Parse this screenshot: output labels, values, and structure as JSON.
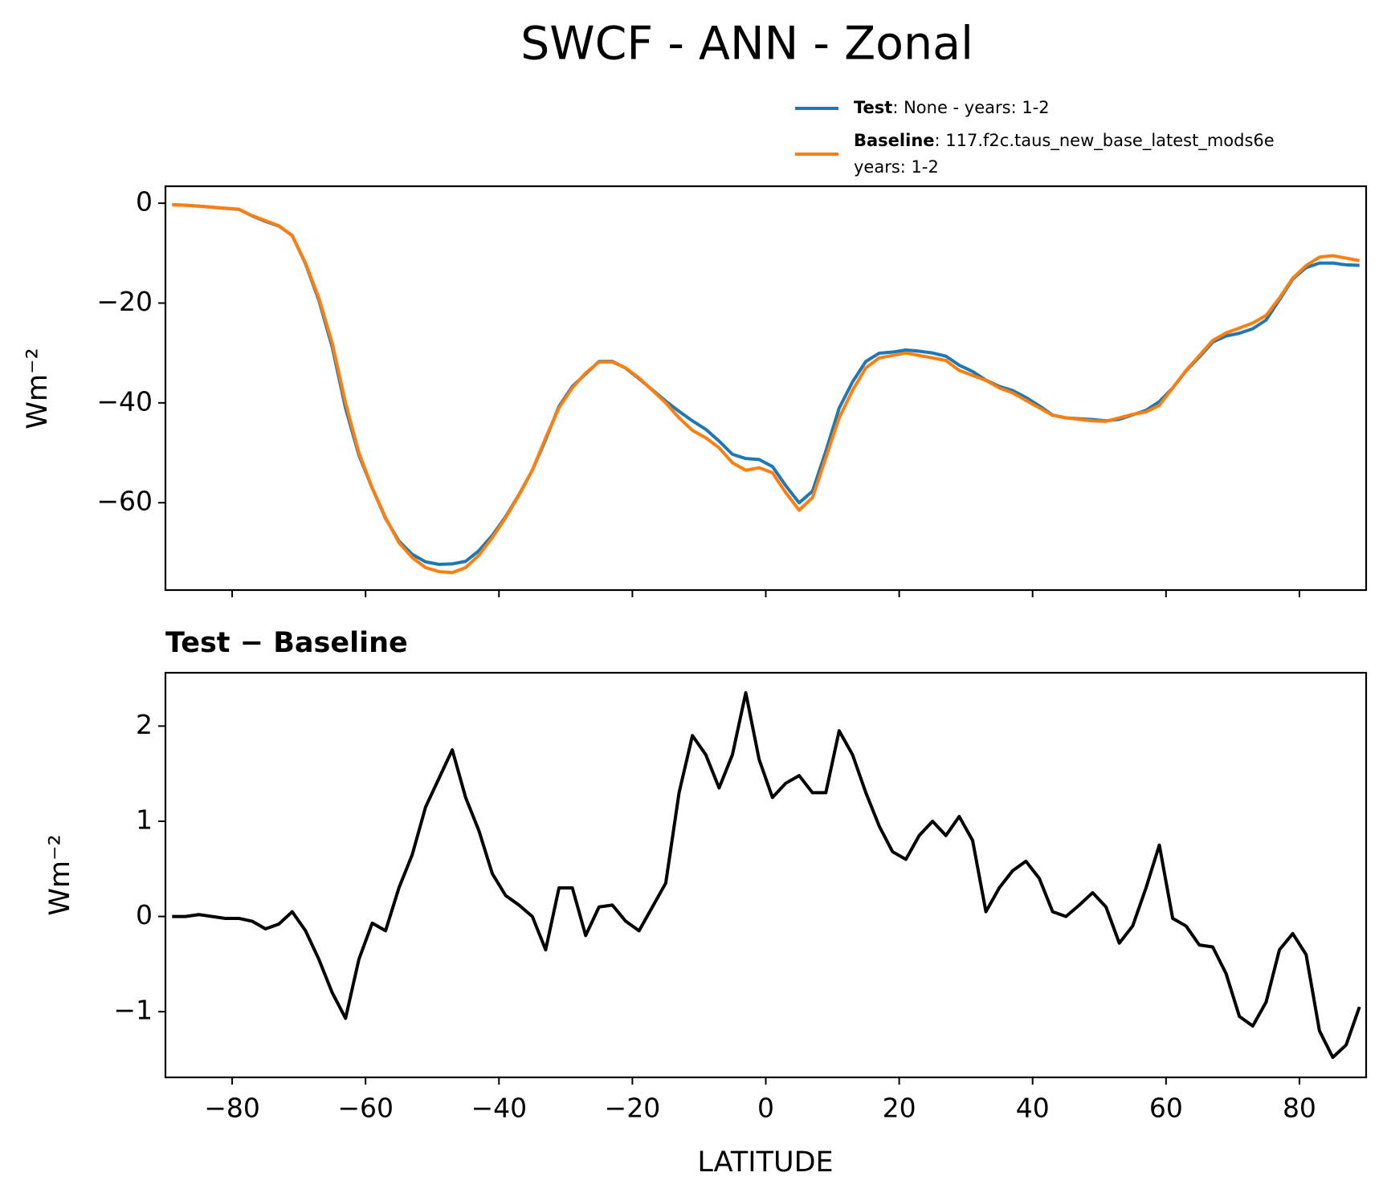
{
  "chart_data": [
    {
      "type": "line",
      "title": "SWCF - ANN - Zonal",
      "ylabel": "Wm⁻²",
      "x": [
        -89,
        -87,
        -85,
        -83,
        -81,
        -79,
        -77,
        -75,
        -73,
        -71,
        -69,
        -67,
        -65,
        -63,
        -61,
        -59,
        -57,
        -55,
        -53,
        -51,
        -49,
        -47,
        -45,
        -43,
        -41,
        -39,
        -37,
        -35,
        -33,
        -31,
        -29,
        -27,
        -25,
        -23,
        -21,
        -19,
        -17,
        -15,
        -13,
        -11,
        -9,
        -7,
        -5,
        -3,
        -1,
        1,
        3,
        5,
        7,
        9,
        11,
        13,
        15,
        17,
        19,
        21,
        23,
        25,
        27,
        29,
        31,
        33,
        35,
        37,
        39,
        41,
        43,
        45,
        47,
        49,
        51,
        53,
        55,
        57,
        59,
        61,
        63,
        65,
        67,
        69,
        71,
        73,
        75,
        77,
        79,
        81,
        83,
        85,
        87,
        89
      ],
      "series": [
        {
          "name": "Test",
          "description": [
            ": None - years: 1-2"
          ],
          "color": "#1f77b4",
          "values": [
            -0.3,
            -0.4,
            -0.58,
            -0.8,
            -1.02,
            -1.22,
            -2.55,
            -3.63,
            -4.58,
            -6.45,
            -12.15,
            -19.45,
            -28.8,
            -41.07,
            -50.45,
            -57.07,
            -63.15,
            -67.7,
            -70.35,
            -71.85,
            -72.35,
            -72.25,
            -71.75,
            -69.6,
            -66.55,
            -62.78,
            -58.38,
            -53.5,
            -47.35,
            -40.7,
            -36.7,
            -34.2,
            -31.7,
            -31.68,
            -33.05,
            -35.15,
            -37.4,
            -39.65,
            -41.7,
            -43.6,
            -45.3,
            -47.65,
            -50.3,
            -51.15,
            -51.35,
            -52.75,
            -56.6,
            -60.02,
            -57.7,
            -49.7,
            -41.05,
            -35.8,
            -31.7,
            -30.05,
            -29.82,
            -29.4,
            -29.65,
            -30,
            -30.65,
            -32.45,
            -33.7,
            -35.45,
            -36.7,
            -37.52,
            -38.92,
            -40.6,
            -42.45,
            -43,
            -43.18,
            -43.35,
            -43.6,
            -43.28,
            -42.4,
            -41.5,
            -39.75,
            -37.02,
            -33.6,
            -30.8,
            -27.82,
            -26.6,
            -26.05,
            -25.15,
            -23.4,
            -19.35,
            -15.18,
            -12.9,
            -12,
            -11.98,
            -12.35,
            -12.45
          ]
        },
        {
          "name": "Baseline",
          "description": [
            ": 117.f2c.taus_new_base_latest_mods6e",
            "years: 1-2"
          ],
          "color": "#ff7f0e",
          "values": [
            -0.3,
            -0.4,
            -0.6,
            -0.8,
            -1.0,
            -1.2,
            -2.5,
            -3.5,
            -4.5,
            -6.5,
            -12,
            -19,
            -28,
            -40,
            -50,
            -57,
            -63,
            -68,
            -71,
            -73,
            -73.8,
            -74,
            -73,
            -70.5,
            -67,
            -63,
            -58.5,
            -53.5,
            -47,
            -41,
            -37,
            -34,
            -31.8,
            -31.8,
            -33,
            -35,
            -37.5,
            -40,
            -43,
            -45.5,
            -47,
            -49,
            -52,
            -53.5,
            -53,
            -54,
            -58,
            -61.5,
            -59,
            -51,
            -43,
            -37.5,
            -33,
            -31,
            -30.5,
            -30,
            -30.5,
            -31,
            -31.5,
            -33.5,
            -34.5,
            -35.5,
            -37,
            -38,
            -39.5,
            -41,
            -42.5,
            -43,
            -43.3,
            -43.6,
            -43.7,
            -43,
            -42.3,
            -41.8,
            -40.5,
            -37,
            -33.5,
            -30.5,
            -27.5,
            -26,
            -25,
            -24,
            -22.5,
            -19,
            -15,
            -12.5,
            -10.8,
            -10.5,
            -11,
            -11.5
          ]
        }
      ],
      "xlim": [
        -90,
        90
      ],
      "xticks": [
        -80,
        -60,
        -40,
        -20,
        0,
        20,
        40,
        60,
        80
      ],
      "ylim": [
        -77.5,
        3.4
      ],
      "yticks": [
        {
          "value": 0,
          "label": "0"
        },
        {
          "value": -20,
          "label": "−20"
        },
        {
          "value": -40,
          "label": "−40"
        },
        {
          "value": -60,
          "label": "−60"
        }
      ],
      "legend": "top-right-outside"
    },
    {
      "type": "line",
      "title": "Test − Baseline",
      "ylabel": "Wm⁻²",
      "xlabel": "LATITUDE",
      "x": [
        -89,
        -87,
        -85,
        -83,
        -81,
        -79,
        -77,
        -75,
        -73,
        -71,
        -69,
        -67,
        -65,
        -63,
        -61,
        -59,
        -57,
        -55,
        -53,
        -51,
        -49,
        -47,
        -45,
        -43,
        -41,
        -39,
        -37,
        -35,
        -33,
        -31,
        -29,
        -27,
        -25,
        -23,
        -21,
        -19,
        -17,
        -15,
        -13,
        -11,
        -9,
        -7,
        -5,
        -3,
        -1,
        1,
        3,
        5,
        7,
        9,
        11,
        13,
        15,
        17,
        19,
        21,
        23,
        25,
        27,
        29,
        31,
        33,
        35,
        37,
        39,
        41,
        43,
        45,
        47,
        49,
        51,
        53,
        55,
        57,
        59,
        61,
        63,
        65,
        67,
        69,
        71,
        73,
        75,
        77,
        79,
        81,
        83,
        85,
        87,
        89
      ],
      "color": "#000000",
      "values": [
        0.0,
        0.0,
        0.02,
        0.0,
        -0.02,
        -0.02,
        -0.05,
        -0.13,
        -0.08,
        0.05,
        -0.15,
        -0.45,
        -0.8,
        -1.07,
        -0.45,
        -0.07,
        -0.15,
        0.3,
        0.65,
        1.15,
        1.45,
        1.75,
        1.25,
        0.9,
        0.45,
        0.22,
        0.12,
        0.0,
        -0.35,
        0.3,
        0.3,
        -0.2,
        0.1,
        0.12,
        -0.05,
        -0.15,
        0.1,
        0.35,
        1.3,
        1.9,
        1.7,
        1.35,
        1.7,
        2.35,
        1.65,
        1.25,
        1.4,
        1.48,
        1.3,
        1.3,
        1.95,
        1.7,
        1.3,
        0.95,
        0.68,
        0.6,
        0.85,
        1.0,
        0.85,
        1.05,
        0.8,
        0.05,
        0.3,
        0.48,
        0.58,
        0.4,
        0.05,
        0.0,
        0.12,
        0.25,
        0.1,
        -0.28,
        -0.1,
        0.3,
        0.75,
        -0.02,
        -0.1,
        -0.3,
        -0.32,
        -0.6,
        -1.05,
        -1.15,
        -0.9,
        -0.35,
        -0.18,
        -0.4,
        -1.2,
        -1.48,
        -1.35,
        -0.95
      ],
      "xlim": [
        -90,
        90
      ],
      "xticks": [
        {
          "value": -80,
          "label": "−80"
        },
        {
          "value": -60,
          "label": "−60"
        },
        {
          "value": -40,
          "label": "−40"
        },
        {
          "value": -20,
          "label": "−20"
        },
        {
          "value": 0,
          "label": "0"
        },
        {
          "value": 20,
          "label": "20"
        },
        {
          "value": 40,
          "label": "40"
        },
        {
          "value": 60,
          "label": "60"
        },
        {
          "value": 80,
          "label": "80"
        }
      ],
      "ylim": [
        -1.69,
        2.56
      ],
      "yticks": [
        {
          "value": -1,
          "label": "−1"
        },
        {
          "value": 0,
          "label": "0"
        },
        {
          "value": 1,
          "label": "1"
        },
        {
          "value": 2,
          "label": "2"
        }
      ]
    }
  ]
}
